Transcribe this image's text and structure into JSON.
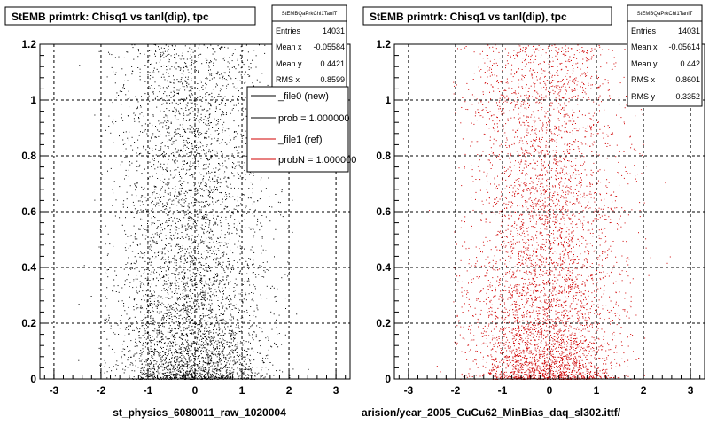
{
  "colors": {
    "new": "#000000",
    "ref": "#d00000"
  },
  "plots": [
    {
      "title": "StEMB primtrk: Chisq1 vs tanl(dip), tpc",
      "xtitle": "st_physics_6080011_raw_1020004",
      "stats": {
        "name": "StEMBQaPrkChi1TanlT",
        "rows": [
          {
            "label": "Entries",
            "value": "14031"
          },
          {
            "label": "Mean x",
            "value": "-0.05584"
          },
          {
            "label": "Mean y",
            "value": "0.4421"
          },
          {
            "label": "RMS x",
            "value": "0.8599"
          }
        ]
      },
      "legend": [
        {
          "label": "_file0 (new)",
          "color": "#000000"
        },
        {
          "label": "prob = 1.000000",
          "color": "#000000"
        },
        {
          "label": "_file1 (ref)",
          "color": "#d00000"
        },
        {
          "label": "probN = 1.000000",
          "color": "#d00000"
        }
      ]
    },
    {
      "title": "StEMB primtrk: Chisq1 vs tanl(dip), tpc",
      "xtitle": "arision/year_2005_CuCu62_MinBias_daq_sl302.ittf/",
      "stats": {
        "name": "StEMBQaPrkChi1TanlT",
        "rows": [
          {
            "label": "Entries",
            "value": "14031"
          },
          {
            "label": "Mean x",
            "value": "-0.05614"
          },
          {
            "label": "Mean y",
            "value": "0.442"
          },
          {
            "label": "RMS x",
            "value": "0.8601"
          },
          {
            "label": "RMS y",
            "value": "0.3352"
          }
        ]
      }
    }
  ],
  "chart_data": [
    {
      "type": "scatter",
      "title": "StEMB primtrk: Chisq1 vs tanl(dip), tpc",
      "xlabel": "st_physics_6080011_raw_1020004",
      "ylabel": "",
      "xlim": [
        -3.3,
        3.3
      ],
      "ylim": [
        0,
        1.2
      ],
      "xticks": [
        -3,
        -2,
        -1,
        0,
        1,
        2,
        3
      ],
      "yticks": [
        0,
        0.2,
        0.4,
        0.6,
        0.8,
        1,
        1.2
      ],
      "grid": true,
      "series": [
        {
          "name": "_file0 (new)",
          "entries": 14031,
          "mean_x": -0.05584,
          "mean_y": 0.4421,
          "rms_x": 0.8599,
          "color": "#000000"
        }
      ]
    },
    {
      "type": "scatter",
      "title": "StEMB primtrk: Chisq1 vs tanl(dip), tpc",
      "xlabel": "arision/year_2005_CuCu62_MinBias_daq_sl302.ittf/",
      "ylabel": "",
      "xlim": [
        -3.3,
        3.3
      ],
      "ylim": [
        0,
        1.2
      ],
      "xticks": [
        -3,
        -2,
        -1,
        0,
        1,
        2,
        3
      ],
      "yticks": [
        0,
        0.2,
        0.4,
        0.6,
        0.8,
        1,
        1.2
      ],
      "grid": true,
      "series": [
        {
          "name": "_file1 (ref)",
          "entries": 14031,
          "mean_x": -0.05614,
          "mean_y": 0.442,
          "rms_x": 0.8601,
          "rms_y": 0.3352,
          "color": "#d00000"
        }
      ]
    }
  ]
}
